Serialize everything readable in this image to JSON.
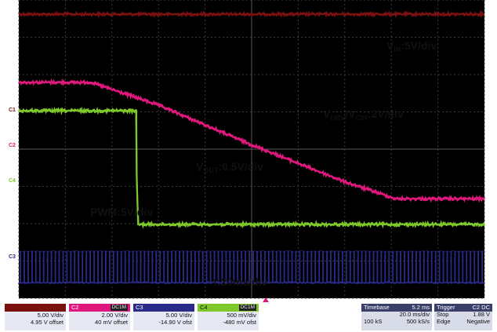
{
  "chart_data": {
    "type": "line",
    "title": "",
    "xlabel": "",
    "ylabel": "",
    "grid": true,
    "x_label_note": "t:20ms/div",
    "series": [
      {
        "name": "VIN",
        "color": "#7a1010",
        "points": [
          [
            0,
            10
          ],
          [
            200,
            10
          ]
        ],
        "noise": 0.9
      },
      {
        "name": "VDRV/VCIN",
        "color": "#e0187e",
        "points": [
          [
            0,
            7.6
          ],
          [
            31,
            7.6
          ],
          [
            60,
            6.8
          ],
          [
            100,
            5.4
          ],
          [
            140,
            4.1
          ],
          [
            162,
            3.5
          ],
          [
            200,
            3.5
          ]
        ],
        "noise": 1.0
      },
      {
        "name": "VOUT",
        "color": "#7ec82a",
        "points": [
          [
            0,
            6.6
          ],
          [
            50.5,
            6.6
          ],
          [
            50.6,
            4.4
          ],
          [
            51,
            3.2
          ],
          [
            51.2,
            2.6
          ],
          [
            200,
            2.6
          ]
        ],
        "noise": 1.0
      },
      {
        "name": "PWM",
        "color": "#2a2a8a",
        "points": [],
        "low": 0.55,
        "high": 1.65,
        "pulses": 120
      }
    ],
    "xlim": [
      0,
      200
    ],
    "ylim": [
      0,
      10.5
    ]
  },
  "labels": {
    "vin_pre": "V",
    "vin_sub": "IN",
    "vin_post": ":5V/div",
    "vdrv_pre": "V",
    "vdrv_sub": "DRV",
    "vdrv_mid": "/V",
    "vdrv_sub2": "CIN",
    "vdrv_post": ":2V/div",
    "vout_pre": "V",
    "vout_sub": "OUT",
    "vout_post": ":0.5V/div",
    "pwm": "PWM:5V/div",
    "time": "t:20ms/div"
  },
  "channel_marks": {
    "c1": "C1",
    "c2": "C2",
    "c3": "C3",
    "c4": "C4"
  },
  "footer": {
    "ch1": {
      "scale": "5.00 V/div",
      "offset": "4.95 V offset",
      "color": "#7a1010"
    },
    "ch2": {
      "name": "C2",
      "tag": "DC1M",
      "scale": "2.00 V/div",
      "offset": "40 mV offset",
      "color": "#e0187e"
    },
    "ch3": {
      "name": "C3",
      "scale": "5.00 V/div",
      "offset": "-14.90 V ofst",
      "color": "#2a2a8a"
    },
    "ch4": {
      "name": "C4",
      "tag": "DC1M",
      "scale": "500 mV/div",
      "offset": "-480 mV ofst",
      "color": "#7ec82a"
    },
    "timebase": {
      "label": "Timebase",
      "value": "5.2 ms",
      "div": "20.0 ms/div",
      "samples": "100 kS",
      "rate": "500 kS/s"
    },
    "trigger": {
      "label": "Trigger",
      "tag": "C2 DC",
      "level": "1.88 V",
      "mode": "Stop",
      "type": "Edge",
      "slope": "Negative"
    }
  }
}
